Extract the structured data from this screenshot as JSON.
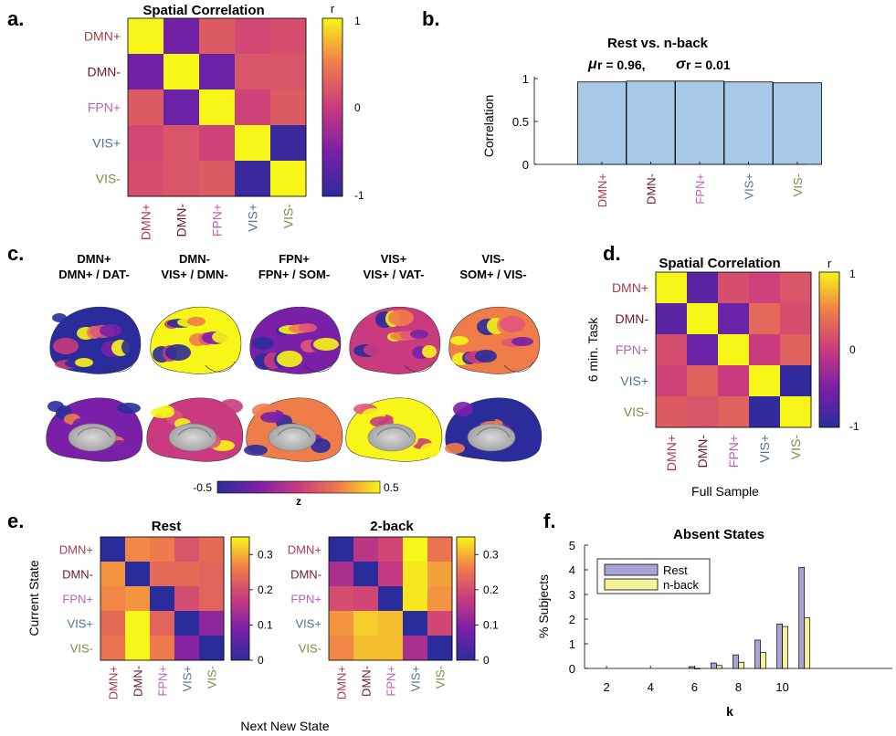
{
  "colors": {
    "DMN+": "#b03a48",
    "DMN-": "#6b1a2a",
    "FPN+": "#c060b0",
    "VIS+": "#4a7595",
    "VIS-": "#7f8a40",
    "bar_blue": "#a7c8e6",
    "rest_bar": "#a9a3d8",
    "nback_bar": "#f6f29a"
  },
  "panel_labels": {
    "a": "a.",
    "b": "b.",
    "c": "c.",
    "d": "d.",
    "e": "e.",
    "f": "f."
  },
  "chart_data": [
    {
      "id": "a",
      "type": "heatmap",
      "title": "Spatial Correlation",
      "rows": [
        "DMN+",
        "DMN-",
        "FPN+",
        "VIS+",
        "VIS-"
      ],
      "cols": [
        "DMN+",
        "DMN-",
        "FPN+",
        "VIS+",
        "VIS-"
      ],
      "values": [
        [
          1.0,
          -0.55,
          0.25,
          0.1,
          0.15
        ],
        [
          -0.55,
          1.0,
          -0.6,
          0.2,
          0.2
        ],
        [
          0.25,
          -0.6,
          1.0,
          0.05,
          0.25
        ],
        [
          0.1,
          0.2,
          0.05,
          1.0,
          -0.9
        ],
        [
          0.15,
          0.2,
          0.25,
          -0.9,
          1.0
        ]
      ],
      "colorbar": {
        "label": "r",
        "ticks": [
          "1",
          "0",
          "-1"
        ],
        "range": [
          -1,
          1
        ]
      }
    },
    {
      "id": "b",
      "type": "bar",
      "title": "Rest vs. n-back",
      "subtitle_mu_symbol": "μ",
      "subtitle_mu": "r = 0.96,",
      "subtitle_sigma_symbol": "σ",
      "subtitle_sigma": "r = 0.01",
      "categories": [
        "DMN+",
        "DMN-",
        "FPN+",
        "VIS+",
        "VIS-"
      ],
      "values": [
        0.96,
        0.97,
        0.97,
        0.96,
        0.95
      ],
      "ylabel": "Correlation",
      "ylim": [
        0,
        1
      ],
      "yticks": [
        "0",
        "0.5",
        "1"
      ]
    },
    {
      "id": "d",
      "type": "heatmap",
      "title": "Spatial Correlation",
      "xlabel": "Full Sample",
      "ylabel": "6 min. Task",
      "rows": [
        "DMN+",
        "DMN-",
        "FPN+",
        "VIS+",
        "VIS-"
      ],
      "cols": [
        "DMN+",
        "DMN-",
        "FPN+",
        "VIS+",
        "VIS-"
      ],
      "values": [
        [
          1.0,
          -0.7,
          0.15,
          0.05,
          0.2
        ],
        [
          -0.7,
          1.0,
          -0.6,
          0.35,
          0.15
        ],
        [
          0.15,
          -0.6,
          1.0,
          0.0,
          0.3
        ],
        [
          0.05,
          0.3,
          0.0,
          1.0,
          -0.95
        ],
        [
          0.25,
          0.2,
          0.3,
          -0.95,
          1.0
        ]
      ],
      "colorbar": {
        "label": "r",
        "ticks": [
          "1",
          "0",
          "-1"
        ],
        "range": [
          -1,
          1
        ]
      }
    },
    {
      "id": "e1",
      "type": "heatmap",
      "title": "Rest",
      "xlabel": "Next New State",
      "ylabel": "Current State",
      "rows": [
        "DMN+",
        "DMN-",
        "FPN+",
        "VIS+",
        "VIS-"
      ],
      "cols": [
        "DMN+",
        "DMN-",
        "FPN+",
        "VIS+",
        "VIS-"
      ],
      "values": [
        [
          0.0,
          0.27,
          0.26,
          0.21,
          0.24
        ],
        [
          0.28,
          0.0,
          0.24,
          0.24,
          0.23
        ],
        [
          0.27,
          0.28,
          0.0,
          0.2,
          0.23
        ],
        [
          0.24,
          0.35,
          0.23,
          0.0,
          0.11
        ],
        [
          0.25,
          0.35,
          0.26,
          0.1,
          0.0
        ]
      ],
      "colorbar": {
        "ticks": [
          "0.3",
          "0.2",
          "0.1",
          "0"
        ],
        "range": [
          0,
          0.35
        ]
      }
    },
    {
      "id": "e2",
      "type": "heatmap",
      "title": "2-back",
      "rows": [
        "DMN+",
        "DMN-",
        "FPN+",
        "VIS+",
        "VIS-"
      ],
      "cols": [
        "DMN+",
        "DMN-",
        "FPN+",
        "VIS+",
        "VIS-"
      ],
      "values": [
        [
          0.0,
          0.16,
          0.19,
          0.35,
          0.25
        ],
        [
          0.14,
          0.0,
          0.17,
          0.34,
          0.29
        ],
        [
          0.2,
          0.19,
          0.0,
          0.34,
          0.28
        ],
        [
          0.28,
          0.32,
          0.31,
          0.0,
          0.19
        ],
        [
          0.27,
          0.31,
          0.31,
          0.14,
          0.0
        ]
      ],
      "colorbar": {
        "ticks": [
          "0.3",
          "0.2",
          "0.1",
          "0"
        ],
        "range": [
          0,
          0.35
        ]
      }
    },
    {
      "id": "f",
      "type": "bar",
      "title": "Absent States",
      "xlabel": "k",
      "ylabel": "% Subjects",
      "x": [
        6,
        7,
        8,
        9,
        10,
        11
      ],
      "xlim": [
        1,
        15
      ],
      "xticks": [
        "2",
        "4",
        "6",
        "8",
        "10"
      ],
      "ylim": [
        0,
        5
      ],
      "yticks": [
        "0",
        "1",
        "2",
        "3",
        "4",
        "5"
      ],
      "series": [
        {
          "name": "Rest",
          "values": [
            0.07,
            0.22,
            0.55,
            1.15,
            1.8,
            4.1
          ]
        },
        {
          "name": "n-back",
          "values": [
            0.0,
            0.12,
            0.25,
            0.65,
            1.7,
            2.05
          ]
        }
      ],
      "legend": "top-left"
    }
  ],
  "brains": {
    "states": [
      {
        "name": "DMN+",
        "desc": "DMN+ / DAT-"
      },
      {
        "name": "DMN-",
        "desc": "VIS+ / DMN-"
      },
      {
        "name": "FPN+",
        "desc": "FPN+ / SOM-"
      },
      {
        "name": "VIS+",
        "desc": "VIS+ / VAT-"
      },
      {
        "name": "VIS-",
        "desc": "SOM+ / VIS-"
      }
    ],
    "colorbar": {
      "min": "-0.5",
      "max": "0.5",
      "label": "z"
    }
  }
}
